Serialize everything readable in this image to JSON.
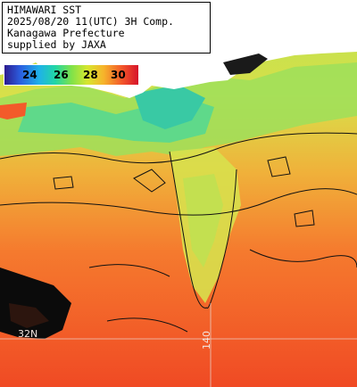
{
  "caption": {
    "line1": "HIMAWARI SST",
    "line2": "2025/08/20 11(UTC) 3H Comp.",
    "line3": "Kanagawa Prefecture",
    "line4": "supplied by JAXA"
  },
  "legend": {
    "ticks": [
      "24",
      "26",
      "28",
      "30"
    ],
    "colors": [
      "#2d1b8f",
      "#2b5fe0",
      "#1fb2e8",
      "#22d6a5",
      "#7fe24a",
      "#d7e62f",
      "#f6b42b",
      "#f3562a",
      "#d6132a"
    ]
  },
  "grid_labels": {
    "lat": "32N",
    "lon": "140"
  },
  "palette": {
    "land": "#ffffff",
    "cloud": "#000000",
    "warm": "#f4662a",
    "cool": "#7fd66b"
  }
}
